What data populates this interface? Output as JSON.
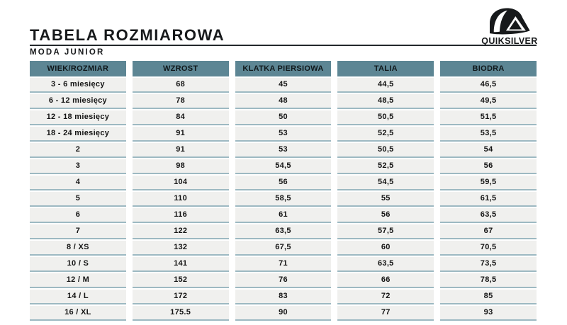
{
  "page": {
    "title": "TABELA ROZMIAROWA",
    "subtitle": "MODA JUNIOR"
  },
  "brand": {
    "name": "QUIKSILVER",
    "logo_icon": "quiksilver-wave-mountain-icon"
  },
  "colors": {
    "header_bg": "#5d8694",
    "cell_bg": "#f0f0ee",
    "cell_border": "#9db9c2",
    "text": "#141414",
    "rule": "#23282b"
  },
  "chart_data": {
    "type": "table",
    "title": "TABELA ROZMIAROWA",
    "subtitle": "MODA JUNIOR",
    "columns": [
      "WIEK/ROZMIAR",
      "WZROST",
      "KLATKA PIERSIOWA",
      "TALIA",
      "BIODRA"
    ],
    "rows": [
      [
        "3 - 6 miesięcy",
        "68",
        "45",
        "44,5",
        "46,5"
      ],
      [
        "6 - 12 miesięcy",
        "78",
        "48",
        "48,5",
        "49,5"
      ],
      [
        "12 - 18 miesięcy",
        "84",
        "50",
        "50,5",
        "51,5"
      ],
      [
        "18 - 24 miesięcy",
        "91",
        "53",
        "52,5",
        "53,5"
      ],
      [
        "2",
        "91",
        "53",
        "50,5",
        "54"
      ],
      [
        "3",
        "98",
        "54,5",
        "52,5",
        "56"
      ],
      [
        "4",
        "104",
        "56",
        "54,5",
        "59,5"
      ],
      [
        "5",
        "110",
        "58,5",
        "55",
        "61,5"
      ],
      [
        "6",
        "116",
        "61",
        "56",
        "63,5"
      ],
      [
        "7",
        "122",
        "63,5",
        "57,5",
        "67"
      ],
      [
        "8 / XS",
        "132",
        "67,5",
        "60",
        "70,5"
      ],
      [
        "10 / S",
        "141",
        "71",
        "63,5",
        "73,5"
      ],
      [
        "12 / M",
        "152",
        "76",
        "66",
        "78,5"
      ],
      [
        "14 / L",
        "172",
        "83",
        "72",
        "85"
      ],
      [
        "16 / XL",
        "175.5",
        "90",
        "77",
        "93"
      ]
    ]
  }
}
